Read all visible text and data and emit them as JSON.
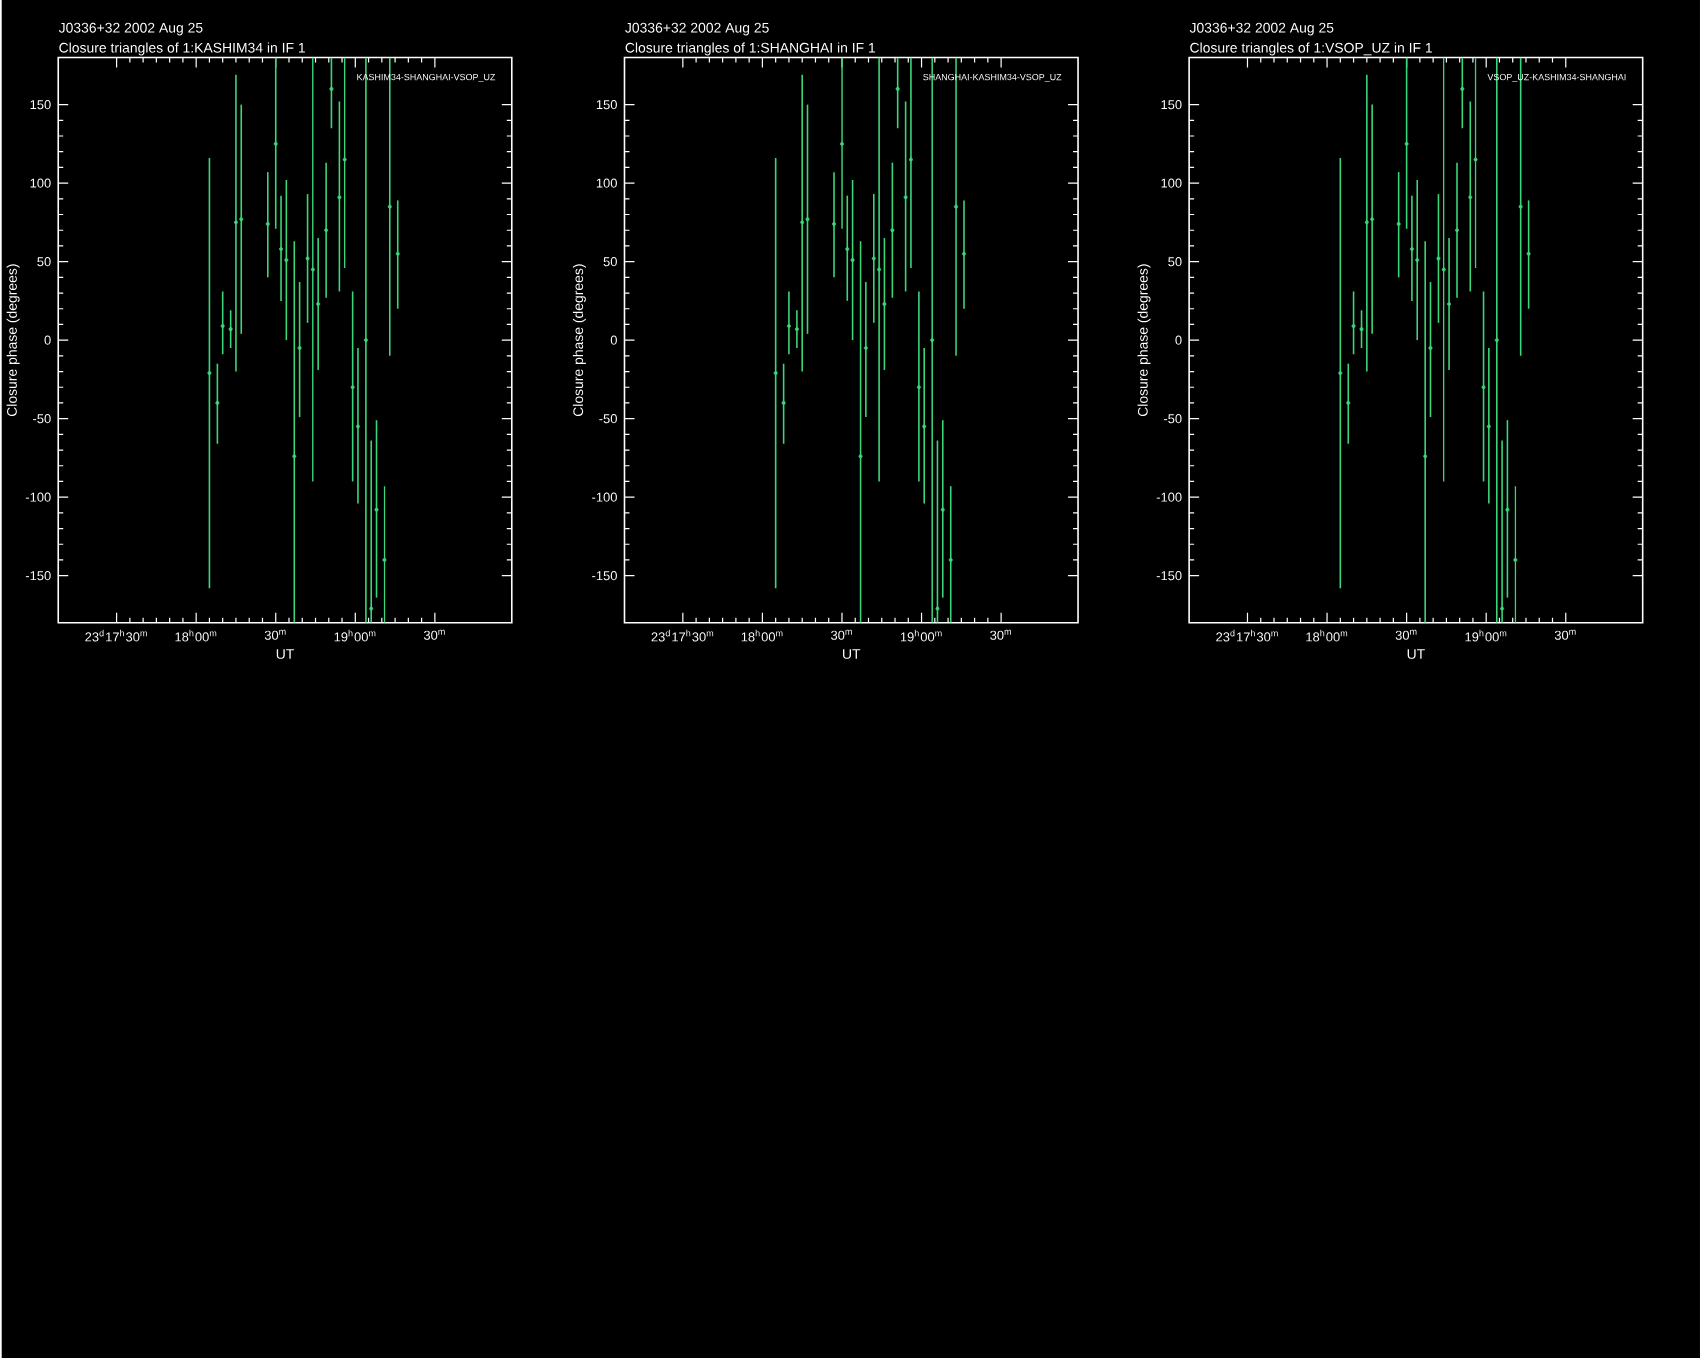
{
  "chart_data": [
    {
      "type": "scatter",
      "title": "J0336+32  2002 Aug 25",
      "subtitle": "Closure triangles of 1:KASHIM34 in IF 1",
      "xlabel": "UT",
      "ylabel": "Closure phase  (degrees)",
      "annotations": [
        "KASHIM34-SHANGHAI-VSOP_UZ"
      ],
      "color": "#3cd67a",
      "x": [
        "2002-08-25T18:05",
        "2002-08-25T18:08",
        "2002-08-25T18:10",
        "2002-08-25T18:13",
        "2002-08-25T18:15",
        "2002-08-25T18:17",
        "2002-08-25T18:27",
        "2002-08-25T18:30",
        "2002-08-25T18:32",
        "2002-08-25T18:34",
        "2002-08-25T18:37",
        "2002-08-25T18:39",
        "2002-08-25T18:42",
        "2002-08-25T18:44",
        "2002-08-25T18:46",
        "2002-08-25T18:49",
        "2002-08-25T18:51",
        "2002-08-25T18:54",
        "2002-08-25T18:56",
        "2002-08-25T18:59",
        "2002-08-25T19:01",
        "2002-08-25T19:04",
        "2002-08-25T19:06",
        "2002-08-25T19:08",
        "2002-08-25T19:11",
        "2002-08-25T19:13",
        "2002-08-25T19:16"
      ],
      "values": [
        -21,
        -40,
        9,
        7,
        75,
        77,
        74,
        125,
        58,
        51,
        -74,
        -5,
        52,
        45,
        23,
        70,
        160,
        91,
        115,
        -30,
        -55,
        0,
        -171,
        -108,
        -140,
        85,
        55
      ],
      "errors": [
        [
          -158,
          116
        ],
        [
          -66,
          -15
        ],
        [
          -9,
          31
        ],
        [
          -5,
          19
        ],
        [
          -20,
          169
        ],
        [
          4,
          150
        ],
        [
          40,
          107
        ],
        [
          71,
          180
        ],
        [
          25,
          92
        ],
        [
          0,
          102
        ],
        [
          -180,
          63
        ],
        [
          -49,
          37
        ],
        [
          11,
          93
        ],
        [
          -90,
          180
        ],
        [
          -19,
          65
        ],
        [
          27,
          113
        ],
        [
          135,
          180
        ],
        [
          31,
          152
        ],
        [
          46,
          180
        ],
        [
          -90,
          31
        ],
        [
          -104,
          -5
        ],
        [
          -180,
          180
        ],
        [
          -180,
          -64
        ],
        [
          -164,
          -51
        ],
        [
          -180,
          -93
        ],
        [
          -10,
          180
        ],
        [
          20,
          89
        ]
      ],
      "xlim": [
        "2002-08-25T17:08",
        "2002-08-25T19:59"
      ],
      "xticks": [
        {
          "value": "2002-08-25T17:30",
          "label": "23$^{d}$17$^{h}$30$^{m}$"
        },
        {
          "value": "2002-08-25T18:00",
          "label": "18$^{h}$00$^{m}$"
        },
        {
          "value": "2002-08-25T18:30",
          "label": "30$^{m}$"
        },
        {
          "value": "2002-08-25T19:00",
          "label": "19$^{h}$00$^{m}$"
        },
        {
          "value": "2002-08-25T19:30",
          "label": "30$^{m}$"
        }
      ],
      "ylim": [
        -180,
        180
      ],
      "yticks": [
        -150,
        -100,
        -50,
        0,
        50,
        100,
        150
      ]
    },
    {
      "type": "scatter",
      "title": "J0336+32  2002 Aug 25",
      "subtitle": "Closure triangles of 1:SHANGHAI in IF 1",
      "xlabel": "UT",
      "ylabel": "Closure phase  (degrees)",
      "annotations": [
        "SHANGHAI-KASHIM34-VSOP_UZ"
      ],
      "color": "#3cd67a",
      "x": [
        "2002-08-25T18:05",
        "2002-08-25T18:08",
        "2002-08-25T18:10",
        "2002-08-25T18:13",
        "2002-08-25T18:15",
        "2002-08-25T18:17",
        "2002-08-25T18:27",
        "2002-08-25T18:30",
        "2002-08-25T18:32",
        "2002-08-25T18:34",
        "2002-08-25T18:37",
        "2002-08-25T18:39",
        "2002-08-25T18:42",
        "2002-08-25T18:44",
        "2002-08-25T18:46",
        "2002-08-25T18:49",
        "2002-08-25T18:51",
        "2002-08-25T18:54",
        "2002-08-25T18:56",
        "2002-08-25T18:59",
        "2002-08-25T19:01",
        "2002-08-25T19:04",
        "2002-08-25T19:06",
        "2002-08-25T19:08",
        "2002-08-25T19:11",
        "2002-08-25T19:13",
        "2002-08-25T19:16"
      ],
      "values": [
        -21,
        -40,
        9,
        7,
        75,
        77,
        74,
        125,
        58,
        51,
        -74,
        -5,
        52,
        45,
        23,
        70,
        160,
        91,
        115,
        -30,
        -55,
        0,
        -171,
        -108,
        -140,
        85,
        55
      ],
      "errors": [
        [
          -158,
          116
        ],
        [
          -66,
          -15
        ],
        [
          -9,
          31
        ],
        [
          -5,
          19
        ],
        [
          -20,
          169
        ],
        [
          4,
          150
        ],
        [
          40,
          107
        ],
        [
          71,
          180
        ],
        [
          25,
          92
        ],
        [
          0,
          102
        ],
        [
          -180,
          63
        ],
        [
          -49,
          37
        ],
        [
          11,
          93
        ],
        [
          -90,
          180
        ],
        [
          -19,
          65
        ],
        [
          27,
          113
        ],
        [
          135,
          180
        ],
        [
          31,
          152
        ],
        [
          46,
          180
        ],
        [
          -90,
          31
        ],
        [
          -104,
          -5
        ],
        [
          -180,
          180
        ],
        [
          -180,
          -64
        ],
        [
          -164,
          -51
        ],
        [
          -180,
          -93
        ],
        [
          -10,
          180
        ],
        [
          20,
          89
        ]
      ],
      "xlim": [
        "2002-08-25T17:08",
        "2002-08-25T19:59"
      ],
      "xticks": [
        {
          "value": "2002-08-25T17:30",
          "label": "23$^{d}$17$^{h}$30$^{m}$"
        },
        {
          "value": "2002-08-25T18:00",
          "label": "18$^{h}$00$^{m}$"
        },
        {
          "value": "2002-08-25T18:30",
          "label": "30$^{m}$"
        },
        {
          "value": "2002-08-25T19:00",
          "label": "19$^{h}$00$^{m}$"
        },
        {
          "value": "2002-08-25T19:30",
          "label": "30$^{m}$"
        }
      ],
      "ylim": [
        -180,
        180
      ],
      "yticks": [
        -150,
        -100,
        -50,
        0,
        50,
        100,
        150
      ]
    },
    {
      "type": "scatter",
      "title": "J0336+32  2002 Aug 25",
      "subtitle": "Closure triangles of 1:VSOP_UZ in IF 1",
      "xlabel": "UT",
      "ylabel": "Closure phase  (degrees)",
      "annotations": [
        "VSOP_UZ-KASHIM34-SHANGHAI"
      ],
      "color": "#3cd67a",
      "x": [
        "2002-08-25T18:05",
        "2002-08-25T18:08",
        "2002-08-25T18:10",
        "2002-08-25T18:13",
        "2002-08-25T18:15",
        "2002-08-25T18:17",
        "2002-08-25T18:27",
        "2002-08-25T18:30",
        "2002-08-25T18:32",
        "2002-08-25T18:34",
        "2002-08-25T18:37",
        "2002-08-25T18:39",
        "2002-08-25T18:42",
        "2002-08-25T18:44",
        "2002-08-25T18:46",
        "2002-08-25T18:49",
        "2002-08-25T18:51",
        "2002-08-25T18:54",
        "2002-08-25T18:56",
        "2002-08-25T18:59",
        "2002-08-25T19:01",
        "2002-08-25T19:04",
        "2002-08-25T19:06",
        "2002-08-25T19:08",
        "2002-08-25T19:11",
        "2002-08-25T19:13",
        "2002-08-25T19:16"
      ],
      "values": [
        -21,
        -40,
        9,
        7,
        75,
        77,
        74,
        125,
        58,
        51,
        -74,
        -5,
        52,
        45,
        23,
        70,
        160,
        91,
        115,
        -30,
        -55,
        0,
        -171,
        -108,
        -140,
        85,
        55
      ],
      "errors": [
        [
          -158,
          116
        ],
        [
          -66,
          -15
        ],
        [
          -9,
          31
        ],
        [
          -5,
          19
        ],
        [
          -20,
          169
        ],
        [
          4,
          150
        ],
        [
          40,
          107
        ],
        [
          71,
          180
        ],
        [
          25,
          92
        ],
        [
          0,
          102
        ],
        [
          -180,
          63
        ],
        [
          -49,
          37
        ],
        [
          11,
          93
        ],
        [
          -90,
          180
        ],
        [
          -19,
          65
        ],
        [
          27,
          113
        ],
        [
          135,
          180
        ],
        [
          31,
          152
        ],
        [
          46,
          180
        ],
        [
          -90,
          31
        ],
        [
          -104,
          -5
        ],
        [
          -180,
          180
        ],
        [
          -180,
          -64
        ],
        [
          -164,
          -51
        ],
        [
          -180,
          -93
        ],
        [
          -10,
          180
        ],
        [
          20,
          89
        ]
      ],
      "xlim": [
        "2002-08-25T17:08",
        "2002-08-25T19:59"
      ],
      "xticks": [
        {
          "value": "2002-08-25T17:30",
          "label": "23$^{d}$17$^{h}$30$^{m}$"
        },
        {
          "value": "2002-08-25T18:00",
          "label": "18$^{h}$00$^{m}$"
        },
        {
          "value": "2002-08-25T18:30",
          "label": "30$^{m}$"
        },
        {
          "value": "2002-08-25T19:00",
          "label": "19$^{h}$00$^{m}$"
        },
        {
          "value": "2002-08-25T19:30",
          "label": "30$^{m}$"
        }
      ],
      "ylim": [
        -180,
        180
      ],
      "yticks": [
        -150,
        -100,
        -50,
        0,
        50,
        100,
        150
      ]
    }
  ]
}
